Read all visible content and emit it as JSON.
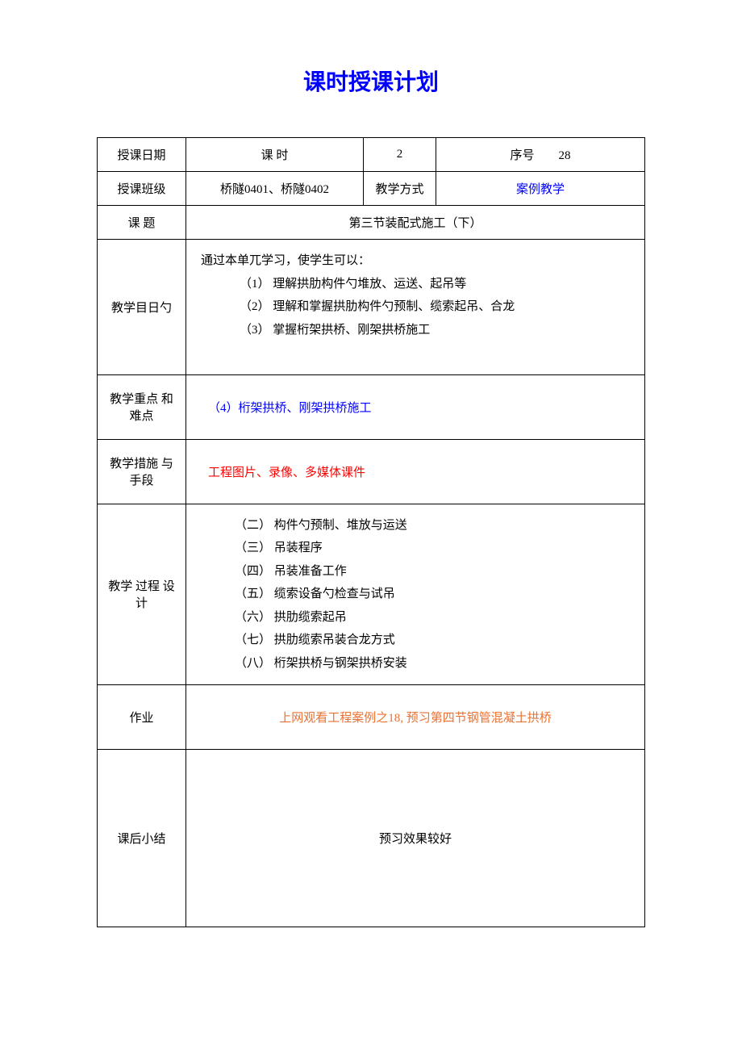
{
  "title": "课时授课计划",
  "labels": {
    "date": "授课日期",
    "period": "课 时",
    "serial": "序号",
    "class": "授课班级",
    "teaching_method_label": "教学方式",
    "topic": "课  题",
    "objectives": "教学目日勺",
    "key_points": "教学重点 和难点",
    "measures": "教学措施 与手段",
    "process_design": "教学 过程 设计",
    "homework": "作业",
    "summary": "课后小结"
  },
  "values": {
    "date_value": "",
    "period_value": "2",
    "serial_value": "28",
    "class_value": "桥隧0401、桥隧0402",
    "teaching_method_value": "案例教学",
    "topic_value": "第三节装配式施工（下）",
    "key_points_value": "（4）桁架拱桥、刚架拱桥施工",
    "measures_value": "工程图片、录像、多媒体课件",
    "homework_value": "上网观看工程案例之18, 预习第四节钢管混凝土拱桥",
    "summary_value": "预习效果较好"
  },
  "objectives": {
    "intro": "通过本单兀学习，使学生可以：",
    "items": [
      "（1）  理解拱肋构件勺堆放、运送、起吊等",
      "（2）  理解和掌握拱肋构件勺预制、缆索起吊、合龙",
      "（3）  掌握桁架拱桥、刚架拱桥施工"
    ]
  },
  "process": [
    "（二）  构件勺预制、堆放与运送",
    "（三）  吊装程序",
    "（四）  吊装准备工作",
    "（五）  缆索设备勺检查与试吊",
    "（六）  拱肋缆索起吊",
    "（七）  拱肋缆索吊装合龙方式",
    "（八）  桁架拱桥与钢架拱桥安装"
  ],
  "colors": {
    "title_color": "#0000ff",
    "link_blue": "#0000ff",
    "red": "#ff0000",
    "orange": "#e97132",
    "border": "#000000",
    "background": "#ffffff"
  },
  "typography": {
    "title_fontsize": 28,
    "body_fontsize": 15,
    "line_height": 1.9
  }
}
